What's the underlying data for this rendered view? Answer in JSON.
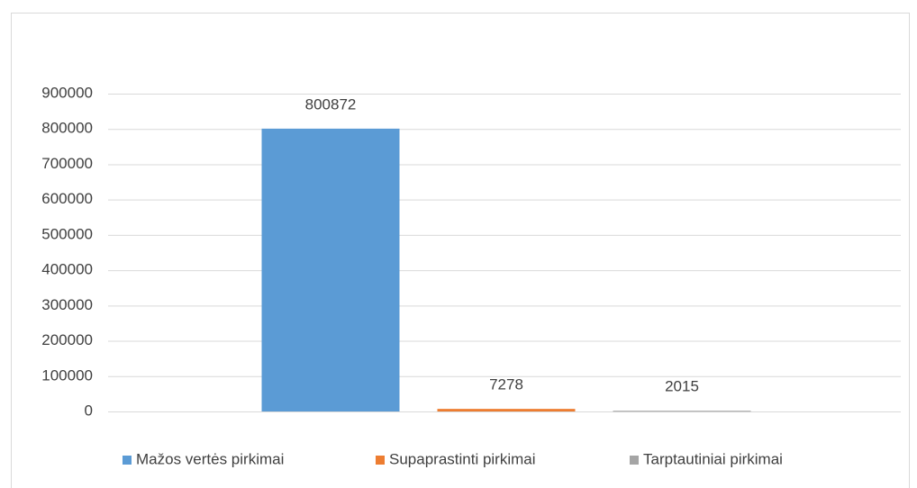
{
  "chart_data": {
    "type": "bar",
    "categories": [
      null
    ],
    "series": [
      {
        "name": "Mažos vertės pirkimai",
        "color": "#5b9bd5",
        "values": [
          800872
        ]
      },
      {
        "name": "Supaprastinti pirkimai",
        "color": "#ed7d31",
        "values": [
          7278
        ]
      },
      {
        "name": "Tarptautiniai pirkimai",
        "color": "#a5a5a5",
        "values": [
          2015
        ]
      }
    ],
    "ylim": [
      0,
      900000
    ],
    "yticks": [
      0,
      100000,
      200000,
      300000,
      400000,
      500000,
      600000,
      700000,
      800000,
      900000
    ],
    "grid": true,
    "legend": "bottom"
  }
}
